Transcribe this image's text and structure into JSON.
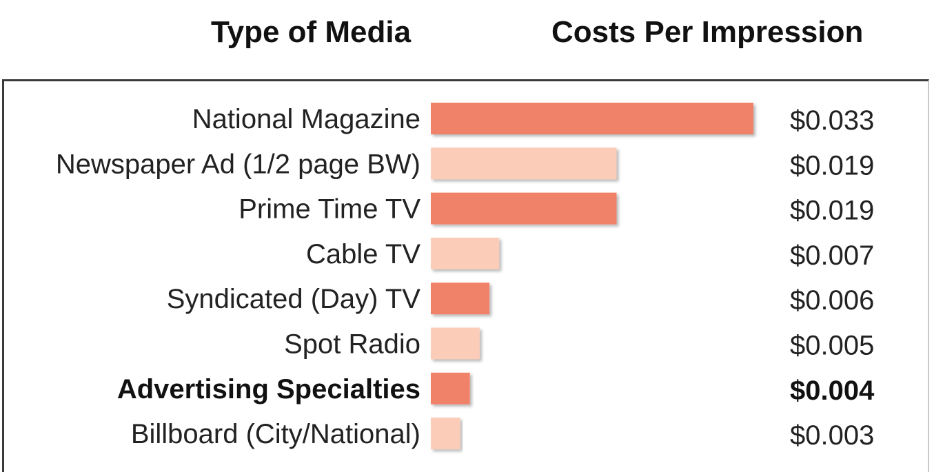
{
  "header": {
    "left_title": "Type of Media",
    "right_title": "Costs Per Impression"
  },
  "colors": {
    "bar_dark": "#f1826a",
    "bar_light": "#fbcdb9"
  },
  "chart_data": {
    "type": "bar",
    "orientation": "horizontal",
    "title": "",
    "xlabel": "",
    "ylabel": "",
    "xlim": [
      0,
      0.033
    ],
    "grid": false,
    "categories": [
      "National Magazine",
      "Newspaper Ad (1/2 page BW)",
      "Prime Time TV",
      "Cable TV",
      "Syndicated (Day) TV",
      "Spot Radio",
      "Advertising Specialties",
      "Billboard (City/National)"
    ],
    "values": [
      0.033,
      0.019,
      0.019,
      0.007,
      0.006,
      0.005,
      0.004,
      0.003
    ],
    "value_labels": [
      "$0.033",
      "$0.019",
      "$0.019",
      "$0.007",
      "$0.006",
      "$0.005",
      "$0.004",
      "$0.003"
    ],
    "highlighted_category": "Advertising Specialties"
  }
}
